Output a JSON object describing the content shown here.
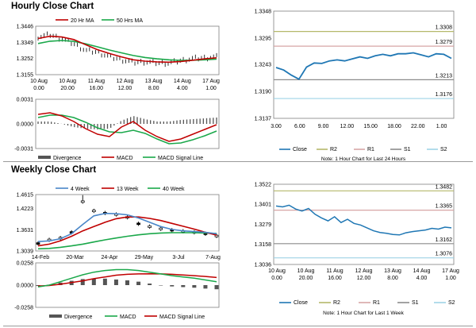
{
  "sections": {
    "hourly_title": "Hourly Close Chart",
    "weekly_title": "Weekly Close Chart"
  },
  "colors": {
    "ma_short": "#c00000",
    "ma_long": "#1aa84a",
    "ma_4w": "#4a86c8",
    "close": "#1f77b4",
    "r2": "#b5b86a",
    "r1": "#d7a6a6",
    "s1": "#8c8c8c",
    "s2": "#9fd3e6",
    "divergence": "#555555",
    "macd": "#c00000",
    "signal": "#1aa84a",
    "candle": "#000000"
  },
  "chart_data": [
    {
      "id": "hourly-price",
      "type": "line",
      "legend": [
        "20 Hr MA",
        "50 Hrs MA"
      ],
      "yticks": [
        "1.3446",
        "1.3349",
        "1.3252",
        "1.3155"
      ],
      "ylim": [
        1.3155,
        1.3446
      ],
      "xticks": [
        [
          "10 Aug",
          "0.00"
        ],
        [
          "10 Aug",
          "20.00"
        ],
        [
          "11 Aug",
          "16.00"
        ],
        [
          "12 Aug",
          "12.00"
        ],
        [
          "13 Aug",
          "8.00"
        ],
        [
          "14 Aug",
          "4.00"
        ],
        [
          "17 Aug",
          "1.00"
        ]
      ],
      "series": [
        {
          "name": "20 Hr MA",
          "values": [
            1.3372,
            1.3386,
            1.3381,
            1.3366,
            1.3335,
            1.3305,
            1.3282,
            1.3262,
            1.3244,
            1.3236,
            1.3232,
            1.323,
            1.3234,
            1.3242,
            1.325,
            1.3256
          ]
        },
        {
          "name": "50 Hrs MA",
          "values": [
            1.3342,
            1.3356,
            1.336,
            1.3355,
            1.334,
            1.3322,
            1.3303,
            1.3286,
            1.327,
            1.3258,
            1.325,
            1.3244,
            1.3241,
            1.3242,
            1.3244,
            1.3248
          ]
        },
        {
          "name": "Close",
          "values": [
            1.3382,
            1.3395,
            1.337,
            1.334,
            1.33,
            1.329,
            1.3262,
            1.3245,
            1.3228,
            1.3232,
            1.3225,
            1.3224,
            1.324,
            1.3252,
            1.3256,
            1.3262
          ]
        }
      ]
    },
    {
      "id": "hourly-macd",
      "type": "line",
      "legend": [
        "Divergence",
        "MACD",
        "MACD Signal Line"
      ],
      "yticks": [
        "0.0031",
        "0.0000",
        "-0.0031"
      ],
      "ylim": [
        -0.0031,
        0.0031
      ],
      "series": [
        {
          "name": "MACD",
          "values": [
            0.0012,
            0.0014,
            0.001,
            0.0003,
            -0.0006,
            -0.0013,
            -0.0016,
            -0.0004,
            0.0003,
            -0.0008,
            -0.0016,
            -0.0022,
            -0.0019,
            -0.0013,
            -0.0007,
            -0.0001
          ]
        },
        {
          "name": "MACD Signal Line",
          "values": [
            0.0008,
            0.0011,
            0.0011,
            0.0008,
            0.0002,
            -0.0005,
            -0.001,
            -0.0011,
            -0.0008,
            -0.0012,
            -0.0019,
            -0.0025,
            -0.0024,
            -0.002,
            -0.0015,
            -0.0009
          ]
        },
        {
          "name": "Divergence",
          "values": [
            0.0003,
            0.0003,
            0.0,
            -0.0004,
            -0.0006,
            -0.0007,
            -0.0006,
            0.0004,
            0.001,
            0.0006,
            0.0003,
            0.0003,
            0.0005,
            0.0006,
            0.0007,
            0.0008
          ]
        }
      ]
    },
    {
      "id": "hourly-close-24h",
      "type": "line",
      "yticks": [
        "1.3348",
        "1.3295",
        "1.3243",
        "1.3190",
        "1.3137"
      ],
      "ylim": [
        1.3137,
        1.3348
      ],
      "xticks": [
        "3.00",
        "6.00",
        "9.00",
        "12.00",
        "15.00",
        "18.00",
        "22.00",
        "1.00"
      ],
      "levels": [
        {
          "name": "R2",
          "value": 1.3308,
          "label": "1.3308"
        },
        {
          "name": "R1",
          "value": 1.3279,
          "label": "1.3279"
        },
        {
          "name": "S1",
          "value": 1.3213,
          "label": "1.3213"
        },
        {
          "name": "S2",
          "value": 1.3176,
          "label": "1.3176"
        }
      ],
      "series": [
        {
          "name": "Close",
          "values": [
            1.3237,
            1.3232,
            1.3222,
            1.3214,
            1.3238,
            1.3246,
            1.3245,
            1.325,
            1.3252,
            1.325,
            1.3254,
            1.3258,
            1.3255,
            1.326,
            1.3263,
            1.326,
            1.3264,
            1.3264,
            1.3266,
            1.3262,
            1.3258,
            1.3264,
            1.3263,
            1.3255
          ]
        }
      ],
      "legend": [
        "Close",
        "R2",
        "R1",
        "S1",
        "S2"
      ],
      "note": "Note: 1 Hour Chart for Last 24 Hours"
    },
    {
      "id": "weekly-price",
      "type": "line",
      "legend": [
        "4 Week",
        "13 Week",
        "40 Week"
      ],
      "yticks": [
        "1.4615",
        "1.4223",
        "1.3631",
        "1.3039"
      ],
      "ylim": [
        1.3039,
        1.4615
      ],
      "xticks": [
        "14-Feb",
        "20-Mar",
        "24-Apr",
        "29-May",
        "3-Jul",
        "7-Aug"
      ],
      "series": [
        {
          "name": "4 Week",
          "values": [
            1.33,
            1.332,
            1.338,
            1.352,
            1.378,
            1.402,
            1.409,
            1.408,
            1.405,
            1.396,
            1.384,
            1.372,
            1.364,
            1.36,
            1.358,
            1.356,
            1.352
          ]
        },
        {
          "name": "13 Week",
          "values": [
            1.318,
            1.323,
            1.332,
            1.345,
            1.36,
            1.372,
            1.384,
            1.394,
            1.399,
            1.399,
            1.395,
            1.389,
            1.381,
            1.373,
            1.365,
            1.356,
            1.348
          ]
        },
        {
          "name": "40 Week",
          "values": [
            1.31,
            1.311,
            1.314,
            1.318,
            1.323,
            1.329,
            1.335,
            1.34,
            1.345,
            1.349,
            1.352,
            1.354,
            1.355,
            1.355,
            1.355,
            1.354,
            1.353
          ]
        },
        {
          "name": "Close",
          "values": [
            1.325,
            1.335,
            1.34,
            1.356,
            1.442,
            1.416,
            1.41,
            1.406,
            1.398,
            1.38,
            1.372,
            1.366,
            1.362,
            1.359,
            1.356,
            1.352,
            1.346
          ]
        }
      ]
    },
    {
      "id": "weekly-macd",
      "type": "line",
      "legend": [
        "Divergence",
        "MACD",
        "MACD Signal Line"
      ],
      "yticks": [
        "0.0258",
        "0.0000",
        "-0.0258"
      ],
      "ylim": [
        -0.0258,
        0.0258
      ],
      "series": [
        {
          "name": "MACD",
          "values": [
            -0.002,
            0.0,
            0.004,
            0.008,
            0.012,
            0.015,
            0.017,
            0.018,
            0.018,
            0.017,
            0.015,
            0.013,
            0.011,
            0.0095,
            0.008,
            0.006,
            0.004
          ]
        },
        {
          "name": "MACD Signal Line",
          "values": [
            -0.001,
            -0.0005,
            0.001,
            0.003,
            0.005,
            0.0075,
            0.0095,
            0.0115,
            0.0125,
            0.013,
            0.0132,
            0.013,
            0.0125,
            0.0118,
            0.011,
            0.01,
            0.0088
          ]
        },
        {
          "name": "Divergence",
          "values": [
            -0.001,
            0.0005,
            0.003,
            0.005,
            0.007,
            0.0075,
            0.0075,
            0.0065,
            0.0055,
            0.004,
            0.0018,
            0.0,
            -0.0015,
            -0.0023,
            -0.003,
            -0.004,
            -0.0048
          ]
        }
      ]
    },
    {
      "id": "weekly-close-1w",
      "type": "line",
      "yticks": [
        "1.3522",
        "1.3401",
        "1.3279",
        "1.3158",
        "1.3036"
      ],
      "ylim": [
        1.3036,
        1.3522
      ],
      "xticks": [
        [
          "10 Aug",
          "0.00"
        ],
        [
          "10 Aug",
          "20.00"
        ],
        [
          "11 Aug",
          "16.00"
        ],
        [
          "12 Aug",
          "12.00"
        ],
        [
          "13 Aug",
          "8.00"
        ],
        [
          "14 Aug",
          "4.00"
        ],
        [
          "17 Aug",
          "1.00"
        ]
      ],
      "levels": [
        {
          "name": "R2",
          "value": 1.3482,
          "label": "1.3482"
        },
        {
          "name": "R1",
          "value": 1.3365,
          "label": "1.3365"
        },
        {
          "name": "S1",
          "value": 1.3162,
          "label": "1.3162"
        },
        {
          "name": "S2",
          "value": 1.3076,
          "label": "1.3076"
        }
      ],
      "series": [
        {
          "name": "Close",
          "values": [
            1.339,
            1.3385,
            1.3395,
            1.3372,
            1.336,
            1.3375,
            1.334,
            1.3318,
            1.33,
            1.3325,
            1.329,
            1.331,
            1.3285,
            1.3275,
            1.3258,
            1.324,
            1.323,
            1.3225,
            1.3218,
            1.3215,
            1.3228,
            1.3235,
            1.324,
            1.3245,
            1.3255,
            1.325,
            1.3262,
            1.3258
          ]
        }
      ],
      "legend": [
        "Close",
        "R2",
        "R1",
        "S1",
        "S2"
      ],
      "note": "Note: 1 Hour Chart for  Last 1 Week"
    }
  ]
}
